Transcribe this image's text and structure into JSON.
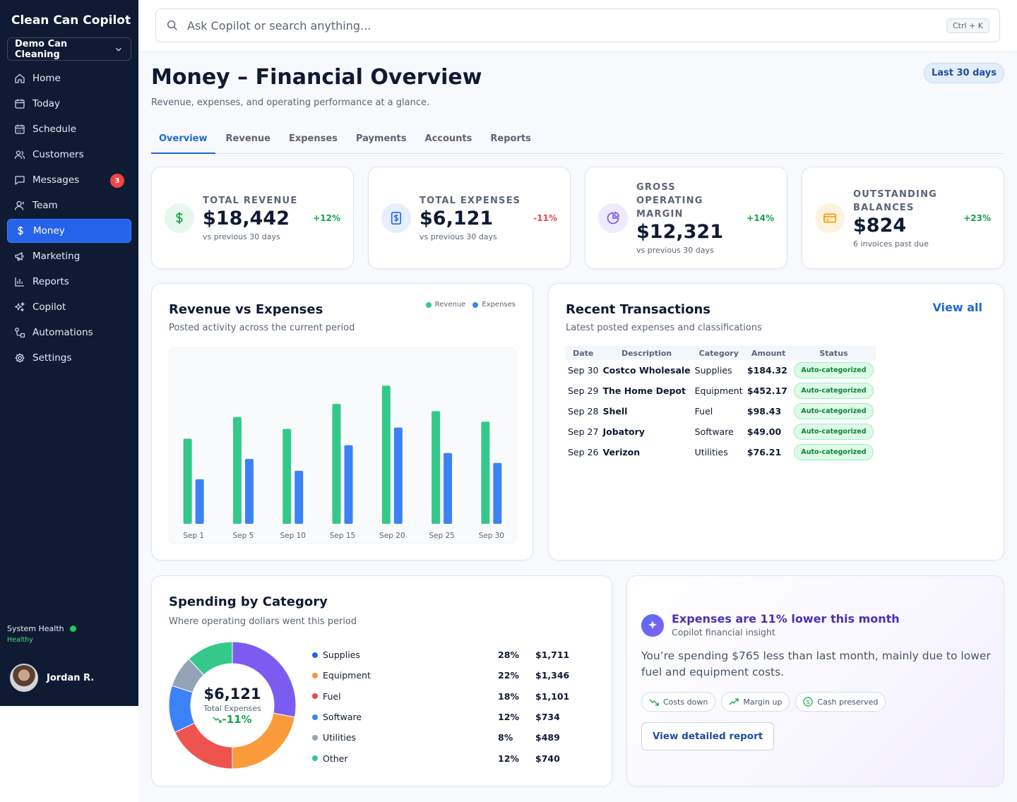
{
  "app": {
    "brand": "Clean Can Copilot",
    "org": "Demo Can Cleaning",
    "nav": [
      {
        "label": "Home",
        "icon": "home-icon"
      },
      {
        "label": "Today",
        "icon": "calendar-icon"
      },
      {
        "label": "Schedule",
        "icon": "calendar-grid-icon"
      },
      {
        "label": "Customers",
        "icon": "users-icon"
      },
      {
        "label": "Messages",
        "icon": "message-icon",
        "badge": "3"
      },
      {
        "label": "Team",
        "icon": "team-icon"
      },
      {
        "label": "Money",
        "icon": "dollar-icon",
        "active": true
      },
      {
        "label": "Marketing",
        "icon": "megaphone-icon"
      },
      {
        "label": "Reports",
        "icon": "bar-chart-icon"
      },
      {
        "label": "Copilot",
        "icon": "sparkles-icon"
      },
      {
        "label": "Automations",
        "icon": "workflow-icon"
      },
      {
        "label": "Settings",
        "icon": "gear-icon"
      }
    ],
    "health": {
      "label": "System Health",
      "status": "Healthy"
    },
    "user": {
      "name": "Jordan R."
    }
  },
  "search": {
    "placeholder": "Ask Copilot or search anything...",
    "shortcut": "Ctrl + K"
  },
  "page": {
    "title": "Money – Financial Overview",
    "subtitle": "Revenue, expenses, and operating performance at a glance.",
    "range": "Last 30 days",
    "tabs": [
      "Overview",
      "Revenue",
      "Expenses",
      "Payments",
      "Accounts",
      "Reports"
    ],
    "active_tab": "Overview"
  },
  "kpis": [
    {
      "label": "TOTAL REVENUE",
      "value": "$18,442",
      "note": "vs previous 30 days",
      "delta": "+12%",
      "delta_color": "#16a34a",
      "icon": "dollar-icon",
      "icon_bg": "#e6f7ee",
      "icon_color": "#16a34a"
    },
    {
      "label": "TOTAL EXPENSES",
      "value": "$6,121",
      "note": "vs previous 30 days",
      "delta": "-11%",
      "delta_color": "#ef4444",
      "icon": "receipt-icon",
      "icon_bg": "#e6f0fc",
      "icon_color": "#2563eb"
    },
    {
      "label": "GROSS OPERATING MARGIN",
      "value": "$12,321",
      "note": "vs previous 30 days",
      "delta": "+14%",
      "delta_color": "#16a34a",
      "icon": "pie-icon",
      "icon_bg": "#efeafc",
      "icon_color": "#7c5ce6"
    },
    {
      "label": "OUTSTANDING BALANCES",
      "value": "$824",
      "note": "6 invoices past due",
      "delta": "+23%",
      "delta_color": "#16a34a",
      "icon": "card-icon",
      "icon_bg": "#fdf2dc",
      "icon_color": "#f59e0b"
    }
  ],
  "rev_exp": {
    "title": "Revenue vs Expenses",
    "subtitle": "Posted activity across the current period",
    "legend": [
      "Revenue",
      "Expenses"
    ]
  },
  "chart_data": {
    "type": "bar",
    "categories": [
      "Sep 1",
      "Sep 5",
      "Sep 10",
      "Sep 15",
      "Sep 20",
      "Sep 25",
      "Sep 30"
    ],
    "series": [
      {
        "name": "Revenue",
        "color": "#34c98a",
        "values": [
          130,
          163,
          145,
          183,
          211,
          172,
          156
        ]
      },
      {
        "name": "Expenses",
        "color": "#3b82f6",
        "values": [
          68,
          99,
          81,
          120,
          147,
          108,
          93
        ]
      }
    ],
    "ylim": [
      0,
      250
    ],
    "grid": false,
    "legend_position": "top-right"
  },
  "transactions": {
    "title": "Recent Transactions",
    "subtitle": "Latest posted expenses and classifications",
    "view_all": "View all",
    "columns": [
      "Date",
      "Description",
      "Category",
      "Amount",
      "Status"
    ],
    "rows": [
      [
        "Sep 30",
        "Costco Wholesale",
        "Supplies",
        "$184.32",
        "Auto-categorized"
      ],
      [
        "Sep 29",
        "The Home Depot",
        "Equipment",
        "$452.17",
        "Auto-categorized"
      ],
      [
        "Sep 28",
        "Shell",
        "Fuel",
        "$98.43",
        "Auto-categorized"
      ],
      [
        "Sep 27",
        "Jobatory",
        "Software",
        "$49.00",
        "Auto-categorized"
      ],
      [
        "Sep 26",
        "Verizon",
        "Utilities",
        "$76.21",
        "Auto-categorized"
      ]
    ]
  },
  "spending": {
    "title": "Spending by Category",
    "subtitle": "Where operating dollars went this period",
    "total": "$6,121",
    "total_label": "Total Expenses",
    "delta": "-11%",
    "categories": [
      {
        "name": "Supplies",
        "pct": "28%",
        "amount": "$1,711",
        "share": 28,
        "color": "#7c5cf0",
        "dot": "#2563eb"
      },
      {
        "name": "Equipment",
        "pct": "22%",
        "amount": "$1,346",
        "share": 22,
        "color": "#fb9a3a",
        "dot": "#fb923c"
      },
      {
        "name": "Fuel",
        "pct": "18%",
        "amount": "$1,101",
        "share": 18,
        "color": "#ef5350",
        "dot": "#ef4444"
      },
      {
        "name": "Software",
        "pct": "12%",
        "amount": "$734",
        "share": 12,
        "color": "#3b82f6",
        "dot": "#3b82f6"
      },
      {
        "name": "Utilities",
        "pct": "8%",
        "amount": "$489",
        "share": 8,
        "color": "#94a3b8",
        "dot": "#94a3b8"
      },
      {
        "name": "Other",
        "pct": "12%",
        "amount": "$740",
        "share": 12,
        "color": "#34c98a",
        "dot": "#34c98a"
      }
    ]
  },
  "insight": {
    "title": "Expenses are 11% lower this month",
    "subtitle": "Copilot financial insight",
    "body": "You’re spending $765 less than last month, mainly due to lower fuel and equipment costs.",
    "chips": [
      "Costs down",
      "Margin up",
      "Cash preserved"
    ],
    "button": "View detailed report"
  }
}
